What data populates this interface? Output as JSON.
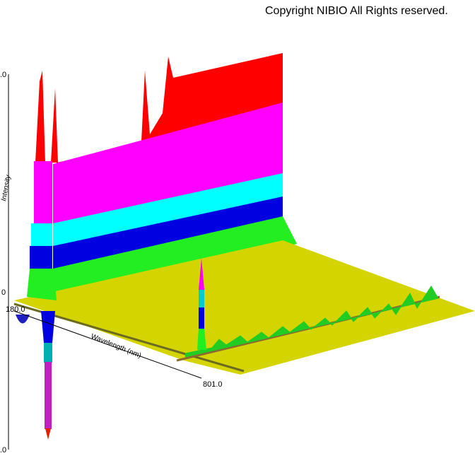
{
  "copyright": "Copyright NIBIO All Rights reserved.",
  "axes": {
    "z_label": "Intensity",
    "x_label": "Wavelength (nm)",
    "x_start": "180.0",
    "x_end": "801.0",
    "z_top": ".0",
    "z_zero": "0",
    "z_bottom": ".0"
  }
}
